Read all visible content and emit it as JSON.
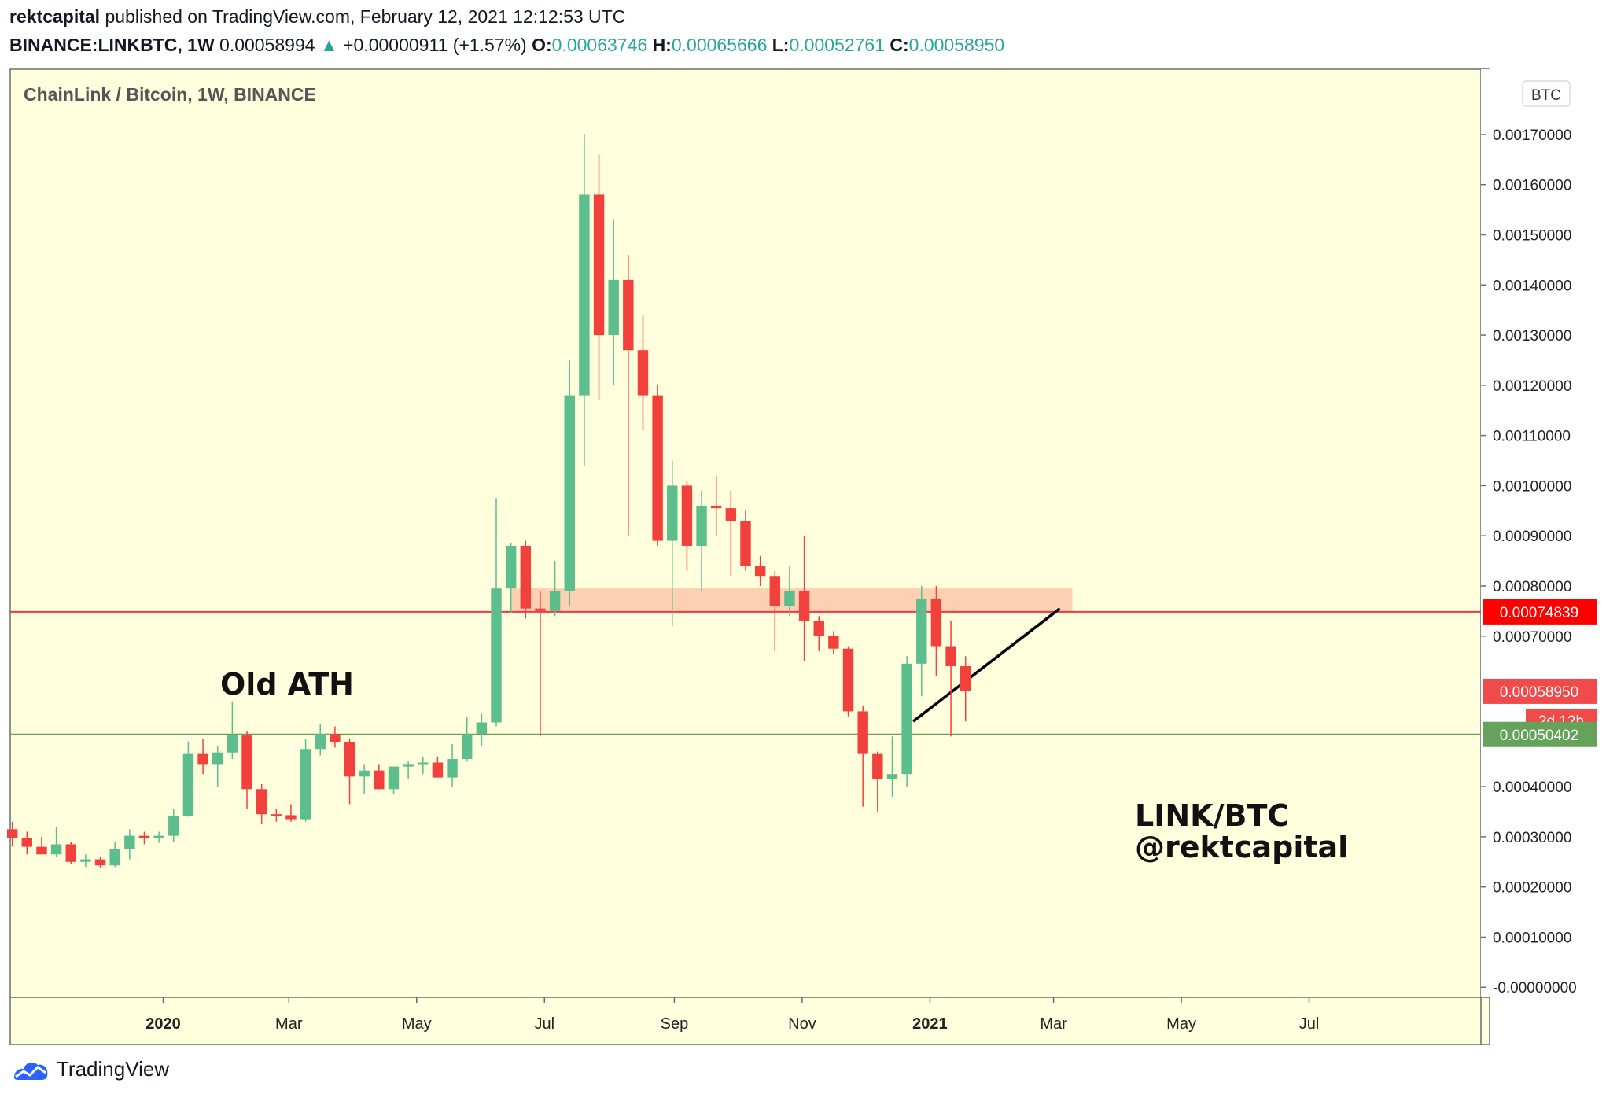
{
  "header": {
    "author": "rektcapital",
    "published": "published on TradingView.com, February 12, 2021 12:12:53 UTC",
    "symbol": "BINANCE:LINKBTC, 1W",
    "last": "0.00058994",
    "change_arrow": "▲",
    "change": "+0.00000911 (+1.57%)",
    "o_label": "O:",
    "o": "0.00063746",
    "h_label": "H:",
    "h": "0.00065666",
    "l_label": "L:",
    "l": "0.00052761",
    "c_label": "C:",
    "c": "0.00058950"
  },
  "footer": {
    "brand": "TradingView"
  },
  "colors": {
    "background": "#ffffdd",
    "up": "#5cbd8d",
    "down": "#f2413c",
    "resistance_line": "#f23645",
    "support_line": "#6e9c5a",
    "zone": "#fcc8a8",
    "label_red": "#ff0000",
    "label_close": "#f04a4a",
    "label_green": "#66a35a"
  },
  "chart_data": {
    "type": "candlestick",
    "title": "ChainLink / Bitcoin, 1W, BINANCE",
    "currency_badge": "BTC",
    "ylim": [
      -2e-05,
      0.00183
    ],
    "y_ticks": [
      {
        "v": 0.0017,
        "label": "0.00170000"
      },
      {
        "v": 0.0016,
        "label": "0.00160000"
      },
      {
        "v": 0.0015,
        "label": "0.00150000"
      },
      {
        "v": 0.0014,
        "label": "0.00140000"
      },
      {
        "v": 0.0013,
        "label": "0.00130000"
      },
      {
        "v": 0.0012,
        "label": "0.00120000"
      },
      {
        "v": 0.0011,
        "label": "0.00110000"
      },
      {
        "v": 0.001,
        "label": "0.00100000"
      },
      {
        "v": 0.0009,
        "label": "0.00090000"
      },
      {
        "v": 0.0008,
        "label": "0.00080000"
      },
      {
        "v": 0.0007,
        "label": "0.00070000"
      },
      {
        "v": 0.0004,
        "label": "0.00040000"
      },
      {
        "v": 0.0003,
        "label": "0.00030000"
      },
      {
        "v": 0.0002,
        "label": "0.00020000"
      },
      {
        "v": 0.0001,
        "label": "0.00010000"
      },
      {
        "v": 0.0,
        "label": "-0.00000000"
      }
    ],
    "x_ticks": [
      {
        "date": "2020-01-01",
        "label": "2020",
        "bold": true
      },
      {
        "date": "2020-03-01",
        "label": "Mar",
        "bold": false
      },
      {
        "date": "2020-05-01",
        "label": "May",
        "bold": false
      },
      {
        "date": "2020-07-01",
        "label": "Jul",
        "bold": false
      },
      {
        "date": "2020-09-01",
        "label": "Sep",
        "bold": false
      },
      {
        "date": "2020-11-01",
        "label": "Nov",
        "bold": false
      },
      {
        "date": "2021-01-01",
        "label": "2021",
        "bold": true
      },
      {
        "date": "2021-03-01",
        "label": "Mar",
        "bold": false
      },
      {
        "date": "2021-05-01",
        "label": "May",
        "bold": false
      },
      {
        "date": "2021-07-01",
        "label": "Jul",
        "bold": false
      }
    ],
    "x_range": [
      "2019-10-20",
      "2021-09-21"
    ],
    "candles": [
      {
        "date": "2019-10-21",
        "open": 0.000315,
        "high": 0.00033,
        "low": 0.00028,
        "close": 0.000298
      },
      {
        "date": "2019-10-28",
        "open": 0.000298,
        "high": 0.00031,
        "low": 0.000265,
        "close": 0.00028
      },
      {
        "date": "2019-11-04",
        "open": 0.00028,
        "high": 0.0003,
        "low": 0.00027,
        "close": 0.000265
      },
      {
        "date": "2019-11-11",
        "open": 0.000265,
        "high": 0.00032,
        "low": 0.00026,
        "close": 0.000285
      },
      {
        "date": "2019-11-18",
        "open": 0.000285,
        "high": 0.00029,
        "low": 0.000245,
        "close": 0.00025
      },
      {
        "date": "2019-11-25",
        "open": 0.00025,
        "high": 0.000265,
        "low": 0.00024,
        "close": 0.000255
      },
      {
        "date": "2019-12-02",
        "open": 0.000255,
        "high": 0.00026,
        "low": 0.000238,
        "close": 0.000243
      },
      {
        "date": "2019-12-09",
        "open": 0.000243,
        "high": 0.00029,
        "low": 0.00024,
        "close": 0.000275
      },
      {
        "date": "2019-12-16",
        "open": 0.000275,
        "high": 0.000315,
        "low": 0.000255,
        "close": 0.000302
      },
      {
        "date": "2019-12-23",
        "open": 0.000302,
        "high": 0.00031,
        "low": 0.000285,
        "close": 0.000298
      },
      {
        "date": "2019-12-30",
        "open": 0.000298,
        "high": 0.00031,
        "low": 0.000288,
        "close": 0.000302
      },
      {
        "date": "2020-01-06",
        "open": 0.000302,
        "high": 0.000355,
        "low": 0.00029,
        "close": 0.000342
      },
      {
        "date": "2020-01-13",
        "open": 0.000342,
        "high": 0.00049,
        "low": 0.00034,
        "close": 0.000465
      },
      {
        "date": "2020-01-20",
        "open": 0.000465,
        "high": 0.000495,
        "low": 0.000425,
        "close": 0.000445
      },
      {
        "date": "2020-01-27",
        "open": 0.000445,
        "high": 0.00048,
        "low": 0.0004,
        "close": 0.000468
      },
      {
        "date": "2020-02-03",
        "open": 0.000468,
        "high": 0.00057,
        "low": 0.000455,
        "close": 0.000502
      },
      {
        "date": "2020-02-10",
        "open": 0.000502,
        "high": 0.00051,
        "low": 0.000355,
        "close": 0.000395
      },
      {
        "date": "2020-02-17",
        "open": 0.000395,
        "high": 0.000405,
        "low": 0.000325,
        "close": 0.000345
      },
      {
        "date": "2020-02-24",
        "open": 0.000345,
        "high": 0.000355,
        "low": 0.00033,
        "close": 0.000343
      },
      {
        "date": "2020-03-02",
        "open": 0.000343,
        "high": 0.000365,
        "low": 0.00033,
        "close": 0.000335
      },
      {
        "date": "2020-03-09",
        "open": 0.000335,
        "high": 0.000495,
        "low": 0.00033,
        "close": 0.000475
      },
      {
        "date": "2020-03-16",
        "open": 0.000475,
        "high": 0.000525,
        "low": 0.000462,
        "close": 0.000505
      },
      {
        "date": "2020-03-23",
        "open": 0.000505,
        "high": 0.00052,
        "low": 0.000478,
        "close": 0.000488
      },
      {
        "date": "2020-03-30",
        "open": 0.000488,
        "high": 0.000495,
        "low": 0.000365,
        "close": 0.00042
      },
      {
        "date": "2020-04-06",
        "open": 0.00042,
        "high": 0.000445,
        "low": 0.000385,
        "close": 0.000432
      },
      {
        "date": "2020-04-13",
        "open": 0.000432,
        "high": 0.000445,
        "low": 0.000395,
        "close": 0.000395
      },
      {
        "date": "2020-04-20",
        "open": 0.000395,
        "high": 0.00044,
        "low": 0.000385,
        "close": 0.00044
      },
      {
        "date": "2020-04-27",
        "open": 0.00044,
        "high": 0.00045,
        "low": 0.000415,
        "close": 0.000445
      },
      {
        "date": "2020-05-04",
        "open": 0.000445,
        "high": 0.00046,
        "low": 0.000425,
        "close": 0.000448
      },
      {
        "date": "2020-05-11",
        "open": 0.000448,
        "high": 0.00046,
        "low": 0.000418,
        "close": 0.000418
      },
      {
        "date": "2020-05-18",
        "open": 0.000418,
        "high": 0.000485,
        "low": 0.0004,
        "close": 0.000455
      },
      {
        "date": "2020-05-25",
        "open": 0.000455,
        "high": 0.000538,
        "low": 0.00045,
        "close": 0.000505
      },
      {
        "date": "2020-06-01",
        "open": 0.000505,
        "high": 0.000545,
        "low": 0.00048,
        "close": 0.000528
      },
      {
        "date": "2020-06-08",
        "open": 0.000528,
        "high": 0.000975,
        "low": 0.00052,
        "close": 0.000795
      },
      {
        "date": "2020-06-15",
        "open": 0.000795,
        "high": 0.000885,
        "low": 0.000745,
        "close": 0.00088
      },
      {
        "date": "2020-06-22",
        "open": 0.00088,
        "high": 0.00089,
        "low": 0.000735,
        "close": 0.000755
      },
      {
        "date": "2020-06-29",
        "open": 0.000755,
        "high": 0.00079,
        "low": 0.0005,
        "close": 0.00075
      },
      {
        "date": "2020-07-06",
        "open": 0.00075,
        "high": 0.00085,
        "low": 0.00074,
        "close": 0.00079
      },
      {
        "date": "2020-07-13",
        "open": 0.00079,
        "high": 0.00125,
        "low": 0.00076,
        "close": 0.00118
      },
      {
        "date": "2020-07-20",
        "open": 0.00118,
        "high": 0.0017,
        "low": 0.00104,
        "close": 0.00158
      },
      {
        "date": "2020-07-27",
        "open": 0.00158,
        "high": 0.00166,
        "low": 0.00117,
        "close": 0.0013
      },
      {
        "date": "2020-08-03",
        "open": 0.0013,
        "high": 0.00153,
        "low": 0.0012,
        "close": 0.00141
      },
      {
        "date": "2020-08-10",
        "open": 0.00141,
        "high": 0.00146,
        "low": 0.0009,
        "close": 0.00127
      },
      {
        "date": "2020-08-17",
        "open": 0.00127,
        "high": 0.00134,
        "low": 0.00111,
        "close": 0.00118
      },
      {
        "date": "2020-08-24",
        "open": 0.00118,
        "high": 0.0012,
        "low": 0.00088,
        "close": 0.00089
      },
      {
        "date": "2020-08-31",
        "open": 0.00089,
        "high": 0.00105,
        "low": 0.00072,
        "close": 0.001
      },
      {
        "date": "2020-09-07",
        "open": 0.001,
        "high": 0.00101,
        "low": 0.00083,
        "close": 0.00088
      },
      {
        "date": "2020-09-14",
        "open": 0.00088,
        "high": 0.00099,
        "low": 0.00079,
        "close": 0.00096
      },
      {
        "date": "2020-09-21",
        "open": 0.00096,
        "high": 0.00102,
        "low": 0.0009,
        "close": 0.000955
      },
      {
        "date": "2020-09-28",
        "open": 0.000955,
        "high": 0.00099,
        "low": 0.00082,
        "close": 0.00093
      },
      {
        "date": "2020-10-05",
        "open": 0.00093,
        "high": 0.00095,
        "low": 0.00083,
        "close": 0.00084
      },
      {
        "date": "2020-10-12",
        "open": 0.00084,
        "high": 0.00086,
        "low": 0.0008,
        "close": 0.00082
      },
      {
        "date": "2020-10-19",
        "open": 0.00082,
        "high": 0.00083,
        "low": 0.00067,
        "close": 0.00076
      },
      {
        "date": "2020-10-26",
        "open": 0.00076,
        "high": 0.00084,
        "low": 0.00074,
        "close": 0.00079
      },
      {
        "date": "2020-11-02",
        "open": 0.00079,
        "high": 0.0009,
        "low": 0.00065,
        "close": 0.00073
      },
      {
        "date": "2020-11-09",
        "open": 0.00073,
        "high": 0.00074,
        "low": 0.00067,
        "close": 0.0007
      },
      {
        "date": "2020-11-16",
        "open": 0.0007,
        "high": 0.00071,
        "low": 0.000665,
        "close": 0.000675
      },
      {
        "date": "2020-11-23",
        "open": 0.000675,
        "high": 0.00068,
        "low": 0.00054,
        "close": 0.00055
      },
      {
        "date": "2020-11-30",
        "open": 0.00055,
        "high": 0.00056,
        "low": 0.00036,
        "close": 0.000465
      },
      {
        "date": "2020-12-07",
        "open": 0.000465,
        "high": 0.00047,
        "low": 0.00035,
        "close": 0.000415
      },
      {
        "date": "2020-12-14",
        "open": 0.000415,
        "high": 0.0005,
        "low": 0.00038,
        "close": 0.000425
      },
      {
        "date": "2020-12-21",
        "open": 0.000425,
        "high": 0.00066,
        "low": 0.0004,
        "close": 0.000645
      },
      {
        "date": "2020-12-28",
        "open": 0.000645,
        "high": 0.0008,
        "low": 0.00058,
        "close": 0.000775
      },
      {
        "date": "2021-01-04",
        "open": 0.000775,
        "high": 0.0008,
        "low": 0.00062,
        "close": 0.00068
      },
      {
        "date": "2021-01-11",
        "open": 0.00068,
        "high": 0.00073,
        "low": 0.0005,
        "close": 0.00064
      },
      {
        "date": "2021-01-18",
        "open": 0.00064,
        "high": 0.00066,
        "low": 0.00053,
        "close": 0.00059
      }
    ],
    "zone": {
      "from_date": "2020-06-15",
      "to_date": "2021-03-10",
      "low": 0.00075,
      "high": 0.000795
    },
    "resistance": {
      "value": 0.00074839,
      "label": "0.00074839"
    },
    "support": {
      "value": 0.00050402,
      "label": "0.00050402"
    },
    "close_label": "0.00058950",
    "countdown_label": "2d 12h",
    "trendline": {
      "from": {
        "date": "2020-12-24",
        "value": 0.00053
      },
      "to": {
        "date": "2021-03-04",
        "value": 0.000755
      }
    },
    "annotations": {
      "old_ath": "Old ATH",
      "pair": "LINK/BTC",
      "handle": "@rektcapital"
    }
  }
}
